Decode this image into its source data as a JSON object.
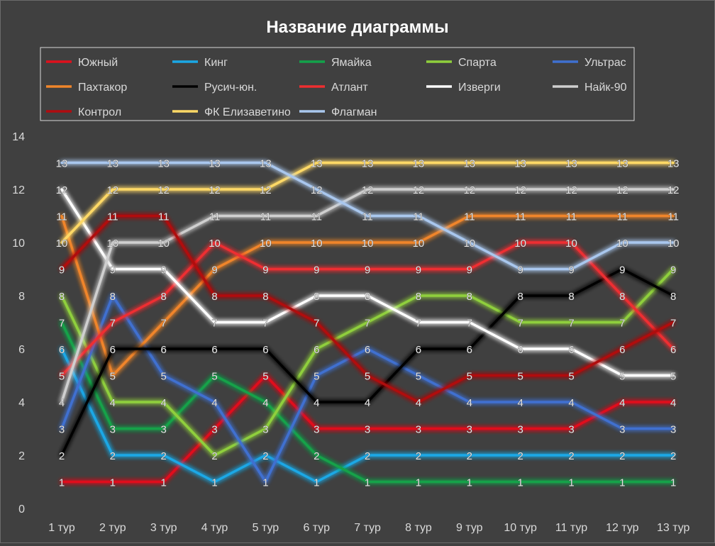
{
  "chart_data": {
    "type": "line",
    "title": "Название диаграммы",
    "xlabel": "",
    "ylabel": "",
    "categories": [
      "1 тур",
      "2 тур",
      "3 тур",
      "4 тур",
      "5 тур",
      "6 тур",
      "7 тур",
      "8 тур",
      "9 тур",
      "10 тур",
      "11 тур",
      "12 тур",
      "13 тур"
    ],
    "ylim": [
      0,
      14
    ],
    "yticks": [
      0,
      2,
      4,
      6,
      8,
      10,
      12,
      14
    ],
    "grid": false,
    "legend_position": "top",
    "data_labels": true,
    "series": [
      {
        "name": "Южный",
        "color": "#e0101c",
        "values": [
          1,
          1,
          1,
          3,
          5,
          3,
          3,
          3,
          3,
          3,
          3,
          4,
          4
        ]
      },
      {
        "name": "Кинг",
        "color": "#1aa8e6",
        "values": [
          6,
          2,
          2,
          1,
          2,
          1,
          2,
          2,
          2,
          2,
          2,
          2,
          2
        ]
      },
      {
        "name": "Ямайка",
        "color": "#12a24a",
        "values": [
          7,
          3,
          3,
          5,
          4,
          2,
          1,
          1,
          1,
          1,
          1,
          1,
          1
        ]
      },
      {
        "name": "Спарта",
        "color": "#8fcf3c",
        "values": [
          8,
          4,
          4,
          2,
          3,
          6,
          7,
          8,
          8,
          7,
          7,
          7,
          9
        ]
      },
      {
        "name": "Ультрас",
        "color": "#3f70d0",
        "values": [
          3,
          8,
          5,
          4,
          1,
          5,
          6,
          5,
          4,
          4,
          4,
          3,
          3
        ]
      },
      {
        "name": "Пахтакор",
        "color": "#f0852a",
        "values": [
          11,
          5,
          7,
          9,
          10,
          10,
          10,
          10,
          11,
          11,
          11,
          11,
          11
        ]
      },
      {
        "name": "Русич-юн.",
        "color": "#000000",
        "values": [
          2,
          6,
          6,
          6,
          6,
          4,
          4,
          6,
          6,
          8,
          8,
          9,
          8
        ]
      },
      {
        "name": "Атлант",
        "color": "#ee2e30",
        "values": [
          5,
          7,
          8,
          10,
          9,
          9,
          9,
          9,
          9,
          10,
          10,
          8,
          6
        ]
      },
      {
        "name": "Изверги",
        "color": "#ffffff",
        "values": [
          12,
          9,
          9,
          7,
          7,
          8,
          8,
          7,
          7,
          6,
          6,
          5,
          5
        ]
      },
      {
        "name": "Найк-90",
        "color": "#cfcfcf",
        "values": [
          4,
          10,
          10,
          11,
          11,
          11,
          12,
          12,
          12,
          12,
          12,
          12,
          12
        ]
      },
      {
        "name": "Контрол",
        "color": "#b00c10",
        "values": [
          9,
          11,
          11,
          8,
          8,
          7,
          5,
          4,
          5,
          5,
          5,
          6,
          7
        ]
      },
      {
        "name": "ФК Елизаветино",
        "color": "#ffd966",
        "values": [
          10,
          12,
          12,
          12,
          12,
          13,
          13,
          13,
          13,
          13,
          13,
          13,
          13
        ]
      },
      {
        "name": "Флагман",
        "color": "#a9c7ee",
        "values": [
          13,
          13,
          13,
          13,
          13,
          12,
          11,
          11,
          10,
          9,
          9,
          10,
          10
        ]
      }
    ]
  }
}
